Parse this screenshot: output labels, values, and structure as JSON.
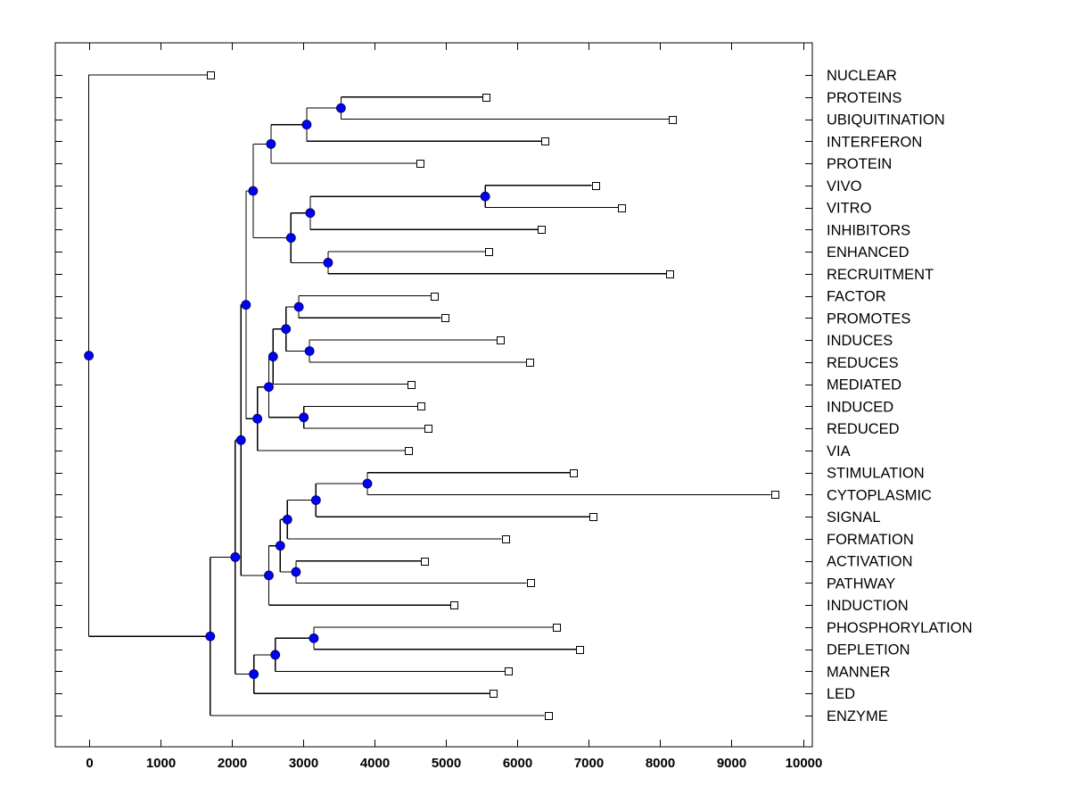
{
  "chart_data": {
    "type": "dendrogram",
    "title": "",
    "xlabel": "",
    "ylabel": "",
    "xlim": [
      -470,
      10130
    ],
    "x_ticks": [
      0,
      1000,
      2000,
      3000,
      4000,
      5000,
      6000,
      7000,
      8000,
      9000,
      10000
    ],
    "x_tick_labels": [
      "0",
      "1000",
      "2000",
      "3000",
      "4000",
      "5000",
      "6000",
      "7000",
      "8000",
      "9000",
      "10000"
    ],
    "grid": false,
    "legend": null,
    "colors": {
      "node_fill": "#0000ff",
      "leaf_fill": "#ffffff",
      "line": "#000000",
      "background": "#ffffff"
    },
    "leaves": [
      {
        "label": "NUCLEAR",
        "value": 1700
      },
      {
        "label": "PROTEINS",
        "value": 5560
      },
      {
        "label": "UBIQUITINATION",
        "value": 8170
      },
      {
        "label": "INTERFERON",
        "value": 6390
      },
      {
        "label": "PROTEIN",
        "value": 4640
      },
      {
        "label": "VIVO",
        "value": 7090
      },
      {
        "label": "VITRO",
        "value": 7460
      },
      {
        "label": "INHIBITORS",
        "value": 6340
      },
      {
        "label": "ENHANCED",
        "value": 5600
      },
      {
        "label": "RECRUITMENT",
        "value": 8130
      },
      {
        "label": "FACTOR",
        "value": 4840
      },
      {
        "label": "PROMOTES",
        "value": 4980
      },
      {
        "label": "INDUCES",
        "value": 5760
      },
      {
        "label": "REDUCES",
        "value": 6170
      },
      {
        "label": "MEDIATED",
        "value": 4510
      },
      {
        "label": "INDUCED",
        "value": 4650
      },
      {
        "label": "REDUCED",
        "value": 4750
      },
      {
        "label": "VIA",
        "value": 4480
      },
      {
        "label": "STIMULATION",
        "value": 6790
      },
      {
        "label": "CYTOPLASMIC",
        "value": 9600
      },
      {
        "label": "SIGNAL",
        "value": 7060
      },
      {
        "label": "FORMATION",
        "value": 5830
      },
      {
        "label": "ACTIVATION",
        "value": 4700
      },
      {
        "label": "PATHWAY",
        "value": 6180
      },
      {
        "label": "INDUCTION",
        "value": 5110
      },
      {
        "label": "PHOSPHORYLATION",
        "value": 6550
      },
      {
        "label": "DEPLETION",
        "value": 6870
      },
      {
        "label": "MANNER",
        "value": 5870
      },
      {
        "label": "LED",
        "value": 5660
      },
      {
        "label": "ENZYME",
        "value": 6430
      }
    ],
    "tree": {
      "value": 0,
      "children": [
        {
          "leaf": 0
        },
        {
          "value": 1700,
          "children": [
            {
              "value": 2050,
              "children": [
                {
                  "value": 2130,
                  "children": [
                    {
                      "value": 2200,
                      "children": [
                        {
                          "value": 2300,
                          "children": [
                            {
                              "value": 2550,
                              "children": [
                                {
                                  "value": 3050,
                                  "children": [
                                    {
                                      "value": 3530,
                                      "children": [
                                        {
                                          "leaf": 1
                                        },
                                        {
                                          "leaf": 2
                                        }
                                      ]
                                    },
                                    {
                                      "leaf": 3
                                    }
                                  ]
                                },
                                {
                                  "leaf": 4
                                }
                              ]
                            },
                            {
                              "value": 2830,
                              "children": [
                                {
                                  "value": 3100,
                                  "children": [
                                    {
                                      "value": 5550,
                                      "children": [
                                        {
                                          "leaf": 5
                                        },
                                        {
                                          "leaf": 6
                                        }
                                      ]
                                    },
                                    {
                                      "leaf": 7
                                    }
                                  ]
                                },
                                {
                                  "value": 3350,
                                  "children": [
                                    {
                                      "leaf": 8
                                    },
                                    {
                                      "leaf": 9
                                    }
                                  ]
                                }
                              ]
                            }
                          ]
                        },
                        {
                          "value": 2360,
                          "children": [
                            {
                              "value": 2520,
                              "children": [
                                {
                                  "value": 2580,
                                  "children": [
                                    {
                                      "value": 2760,
                                      "children": [
                                        {
                                          "value": 2940,
                                          "children": [
                                            {
                                              "leaf": 10
                                            },
                                            {
                                              "leaf": 11
                                            }
                                          ]
                                        },
                                        {
                                          "value": 3090,
                                          "children": [
                                            {
                                              "leaf": 12
                                            },
                                            {
                                              "leaf": 13
                                            }
                                          ]
                                        }
                                      ]
                                    },
                                    {
                                      "leaf": 14
                                    }
                                  ]
                                },
                                {
                                  "value": 3010,
                                  "children": [
                                    {
                                      "leaf": 15
                                    },
                                    {
                                      "leaf": 16
                                    }
                                  ]
                                }
                              ]
                            },
                            {
                              "leaf": 17
                            }
                          ]
                        }
                      ]
                    },
                    {
                      "value": 2520,
                      "children": [
                        {
                          "value": 2680,
                          "children": [
                            {
                              "value": 2780,
                              "children": [
                                {
                                  "value": 3180,
                                  "children": [
                                    {
                                      "value": 3900,
                                      "children": [
                                        {
                                          "leaf": 18
                                        },
                                        {
                                          "leaf": 19
                                        }
                                      ]
                                    },
                                    {
                                      "leaf": 20
                                    }
                                  ]
                                },
                                {
                                  "leaf": 21
                                }
                              ]
                            },
                            {
                              "value": 2900,
                              "children": [
                                {
                                  "leaf": 22
                                },
                                {
                                  "leaf": 23
                                }
                              ]
                            }
                          ]
                        },
                        {
                          "leaf": 24
                        }
                      ]
                    }
                  ]
                },
                {
                  "value": 2310,
                  "children": [
                    {
                      "value": 2610,
                      "children": [
                        {
                          "value": 3150,
                          "children": [
                            {
                              "leaf": 25
                            },
                            {
                              "leaf": 26
                            }
                          ]
                        },
                        {
                          "leaf": 27
                        }
                      ]
                    },
                    {
                      "leaf": 28
                    }
                  ]
                }
              ]
            },
            {
              "leaf": 29
            }
          ]
        }
      ]
    }
  }
}
